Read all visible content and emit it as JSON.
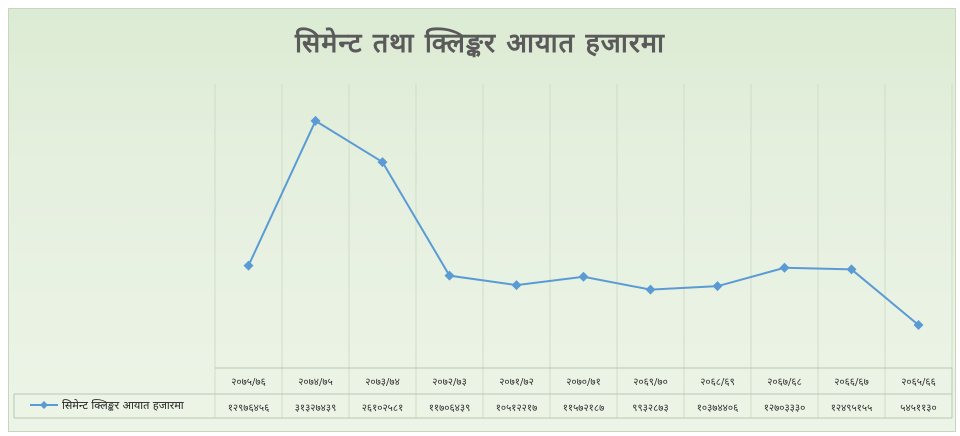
{
  "chart_data": {
    "type": "line",
    "title": "सिमेन्ट तथा क्लिङ्कर आयात हजारमा",
    "categories": [
      "२०७५/७६",
      "२०७४/७५",
      "२०७३/७४",
      "२०७२/७३",
      "२०७१/७२",
      "२०७०/७१",
      "२०६९/७०",
      "२०६८/६९",
      "२०६७/६८",
      "२०६६/६७",
      "२०६५/६६"
    ],
    "series": [
      {
        "name": "सिमेन्ट क्लिङ्कर आयात हजारमा",
        "values": [
          12976456,
          31327439,
          26102581,
          11706439,
          10512217,
          11572187,
          9932873,
          10374406,
          12703330,
          12495155,
          5451130
        ],
        "value_labels": [
          "१२९७६४५६",
          "३१३२७४३९",
          "२६१०२५८१",
          "११७०६४३९",
          "१०५१२२१७",
          "११५७२१८७",
          "९९३२८७३",
          "१०३७४४०६",
          "१२७०३३३०",
          "१२४९५१५५",
          "५४५११३०"
        ]
      }
    ],
    "data_table": true,
    "legend": "in-table",
    "grid": "vertical",
    "line_color": "#5b9bd5"
  }
}
